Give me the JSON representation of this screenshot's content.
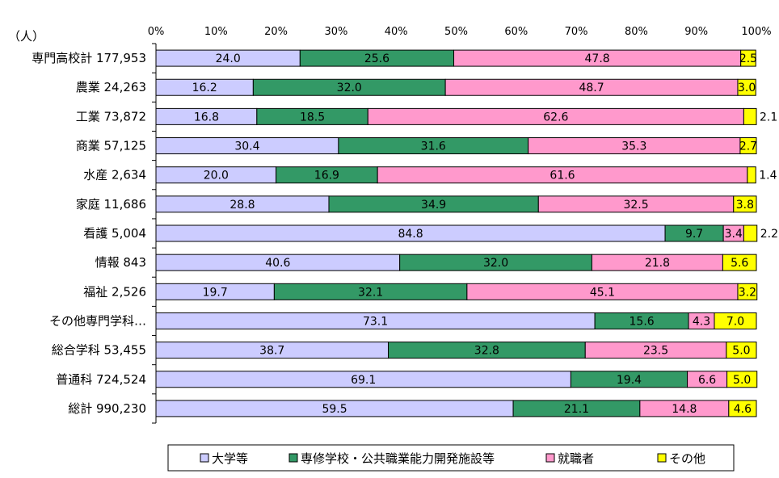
{
  "chart_data": {
    "type": "bar",
    "orientation": "horizontal",
    "stacked": true,
    "percent_stacked": true,
    "unit_label": "（人）",
    "xlim": [
      0,
      100
    ],
    "x_ticks": [
      "0%",
      "10%",
      "20%",
      "30%",
      "40%",
      "50%",
      "60%",
      "70%",
      "80%",
      "90%",
      "100%"
    ],
    "grid": false,
    "legend_position": "bottom",
    "categories": [
      "専門高校計 177,953",
      "農業 24,263",
      "工業 73,872",
      "商業 57,125",
      "水産 2,634",
      "家庭 11,686",
      "看護 5,004",
      "情報 843",
      "福祉 2,526",
      "その他専門学科…",
      "総合学科 53,455",
      "普通科 724,524",
      "総計 990,230"
    ],
    "series": [
      {
        "name": "大学等",
        "color": "#ccccff",
        "values": [
          24.0,
          16.2,
          16.8,
          30.4,
          20.0,
          28.8,
          84.8,
          40.6,
          19.7,
          73.1,
          38.7,
          69.1,
          59.5
        ],
        "labels": [
          "24.0",
          "16.2",
          "16.8",
          "30.4",
          "20.0",
          "28.8",
          "84.8",
          "40.6",
          "19.7",
          "73.1",
          "38.7",
          "69.1",
          "59.5"
        ]
      },
      {
        "name": "専修学校・公共職業能力開発施設等",
        "color": "#339966",
        "values": [
          25.6,
          32.0,
          18.5,
          31.6,
          16.9,
          34.9,
          9.7,
          32.0,
          32.1,
          15.6,
          32.8,
          19.4,
          21.1
        ],
        "labels": [
          "25.6",
          "32.0",
          "18.5",
          "31.6",
          "16.9",
          "34.9",
          "9.7",
          "32.0",
          "32.1",
          "15.6",
          "32.8",
          "19.4",
          "21.1"
        ]
      },
      {
        "name": "就職者",
        "color": "#ff99cc",
        "values": [
          47.8,
          48.7,
          62.6,
          35.3,
          61.6,
          32.5,
          3.4,
          21.8,
          45.1,
          4.3,
          23.5,
          6.6,
          14.8
        ],
        "labels": [
          "47.8",
          "48.7",
          "62.6",
          "35.3",
          "61.6",
          "32.5",
          "3.4",
          "21.8",
          "45.1",
          "4.3",
          "23.5",
          "6.6",
          "14.8"
        ]
      },
      {
        "name": "その他",
        "color": "#ffff00",
        "values": [
          2.5,
          3.0,
          2.1,
          2.7,
          1.4,
          3.8,
          2.2,
          5.6,
          3.2,
          7.0,
          5.0,
          5.0,
          4.6
        ],
        "labels": [
          "2.5",
          "3.0",
          "2.1",
          "2.7",
          "1.4",
          "3.8",
          "2.2",
          "5.6",
          "3.2",
          "7.0",
          "5.0",
          "5.0",
          "4.6"
        ],
        "label_outside": [
          false,
          false,
          true,
          false,
          true,
          false,
          true,
          false,
          false,
          false,
          false,
          false,
          false
        ]
      }
    ]
  }
}
